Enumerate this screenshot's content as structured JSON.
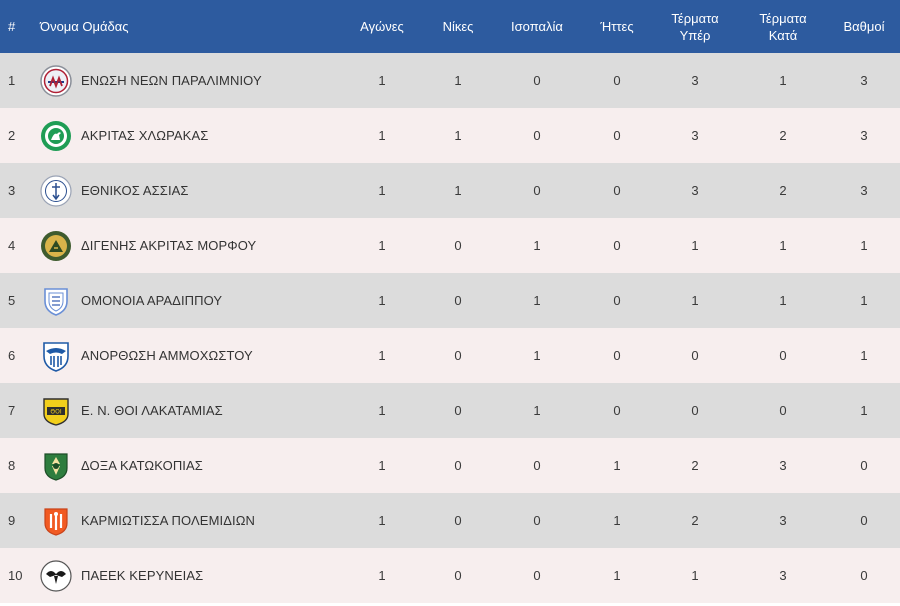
{
  "headers": {
    "pos": "#",
    "team": "Όνομα Ομάδας",
    "played": "Αγώνες",
    "wins": "Νίκες",
    "draws": "Ισοπαλία",
    "losses": "Ήττες",
    "goals_for_1": "Τέρματα",
    "goals_for_2": "Υπέρ",
    "goals_against_1": "Τέρματα",
    "goals_against_2": "Κατά",
    "points": "Βαθμοί"
  },
  "rows": [
    {
      "pos": "1",
      "team": "ΕΝΩΣΗ ΝΕΩΝ ΠΑΡΑΛΙΜΝΙΟΥ",
      "played": "1",
      "wins": "1",
      "draws": "0",
      "losses": "0",
      "gf": "3",
      "ga": "1",
      "pts": "3",
      "logo": "enp-crest-icon"
    },
    {
      "pos": "2",
      "team": "ΑΚΡΙΤΑΣ ΧΛΩΡΑΚΑΣ",
      "played": "1",
      "wins": "1",
      "draws": "0",
      "losses": "0",
      "gf": "3",
      "ga": "2",
      "pts": "3",
      "logo": "akritas-crest-icon"
    },
    {
      "pos": "3",
      "team": "ΕΘΝΙΚΟΣ ΑΣΣΙΑΣ",
      "played": "1",
      "wins": "1",
      "draws": "0",
      "losses": "0",
      "gf": "3",
      "ga": "2",
      "pts": "3",
      "logo": "ethnikos-crest-icon"
    },
    {
      "pos": "4",
      "team": "ΔΙΓΕΝΗΣ ΑΚΡΙΤΑΣ ΜΟΡΦΟΥ",
      "played": "1",
      "wins": "0",
      "draws": "1",
      "losses": "0",
      "gf": "1",
      "ga": "1",
      "pts": "1",
      "logo": "digenis-crest-icon"
    },
    {
      "pos": "5",
      "team": "ΟΜΟΝΟΙΑ ΑΡΑΔΙΠΠΟΥ",
      "played": "1",
      "wins": "0",
      "draws": "1",
      "losses": "0",
      "gf": "1",
      "ga": "1",
      "pts": "1",
      "logo": "omonoia-crest-icon"
    },
    {
      "pos": "6",
      "team": "ΑΝΟΡΘΩΣΗ ΑΜΜΟΧΩΣΤΟΥ",
      "played": "1",
      "wins": "0",
      "draws": "1",
      "losses": "0",
      "gf": "0",
      "ga": "0",
      "pts": "1",
      "logo": "anorthosis-crest-icon"
    },
    {
      "pos": "7",
      "team": "Ε. Ν. ΘΟΙ ΛΑΚΑΤΑΜΙΑΣ",
      "played": "1",
      "wins": "0",
      "draws": "1",
      "losses": "0",
      "gf": "0",
      "ga": "0",
      "pts": "1",
      "logo": "thoi-crest-icon"
    },
    {
      "pos": "8",
      "team": "ΔΟΞΑ ΚΑΤΩΚΟΠΙΑΣ",
      "played": "1",
      "wins": "0",
      "draws": "0",
      "losses": "1",
      "gf": "2",
      "ga": "3",
      "pts": "0",
      "logo": "doxa-crest-icon"
    },
    {
      "pos": "9",
      "team": "ΚΑΡΜΙΩΤΙΣΣΑ ΠΟΛΕΜΙΔΙΩΝ",
      "played": "1",
      "wins": "0",
      "draws": "0",
      "losses": "1",
      "gf": "2",
      "ga": "3",
      "pts": "0",
      "logo": "karmiotissa-crest-icon"
    },
    {
      "pos": "10",
      "team": "ΠΑΕΕΚ ΚΕΡΥΝΕΙΑΣ",
      "played": "1",
      "wins": "0",
      "draws": "0",
      "losses": "1",
      "gf": "1",
      "ga": "3",
      "pts": "0",
      "logo": "paeek-crest-icon"
    }
  ],
  "colors": {
    "header_bg": "#2d5b9f",
    "row_odd": "#dcdcdc",
    "row_even": "#f7eeee"
  }
}
